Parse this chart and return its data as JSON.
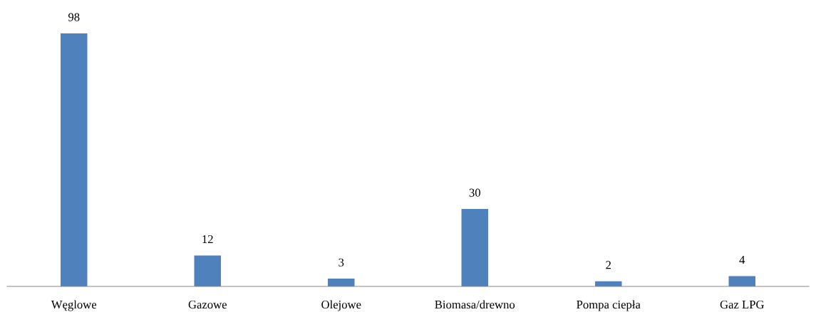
{
  "chart_data": {
    "type": "bar",
    "categories": [
      "Węglowe",
      "Gazowe",
      "Olejowe",
      "Biomasa/drewno",
      "Pompa ciepła",
      "Gaz LPG"
    ],
    "values": [
      98,
      12,
      3,
      30,
      2,
      4
    ],
    "color": "#4f81bd",
    "data_labels": true,
    "grid": false,
    "legend": false
  }
}
